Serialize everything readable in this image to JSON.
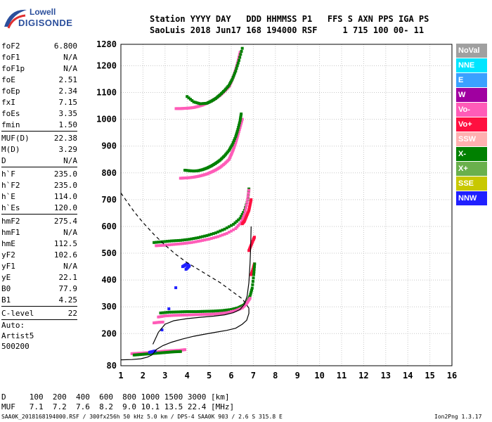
{
  "logo": {
    "brand": "Lowell",
    "product": "DIGISONDE"
  },
  "header": {
    "line1": "Station YYYY DAY   DDD HHMMSS P1   FFS S AXN PPS IGA PS",
    "line2": "SaoLuis 2018 Jun17 168 194000 RSF     1 715 100 00- 11"
  },
  "params": [
    {
      "type": "row",
      "label": "foF2",
      "value": "6.800"
    },
    {
      "type": "row",
      "label": "foF1",
      "value": "N/A"
    },
    {
      "type": "row",
      "label": "foF1p",
      "value": "N/A"
    },
    {
      "type": "row",
      "label": "foE",
      "value": "2.51"
    },
    {
      "type": "row",
      "label": "foEp",
      "value": "2.34"
    },
    {
      "type": "row",
      "label": "fxI",
      "value": "7.15"
    },
    {
      "type": "row",
      "label": "foEs",
      "value": "3.35"
    },
    {
      "type": "row",
      "label": "fmin",
      "value": "1.50"
    },
    {
      "type": "sep"
    },
    {
      "type": "row",
      "label": "MUF(D)",
      "value": "22.38"
    },
    {
      "type": "row",
      "label": "M(D)",
      "value": "3.29"
    },
    {
      "type": "row",
      "label": "D",
      "value": "N/A"
    },
    {
      "type": "sep"
    },
    {
      "type": "row",
      "label": "h`F",
      "value": "235.0"
    },
    {
      "type": "row",
      "label": "h`F2",
      "value": "235.0"
    },
    {
      "type": "row",
      "label": "h`E",
      "value": "114.0"
    },
    {
      "type": "row",
      "label": "h`Es",
      "value": "120.0"
    },
    {
      "type": "sep"
    },
    {
      "type": "row",
      "label": "hmF2",
      "value": "275.4"
    },
    {
      "type": "row",
      "label": "hmF1",
      "value": "N/A"
    },
    {
      "type": "row",
      "label": "hmE",
      "value": "112.5"
    },
    {
      "type": "row",
      "label": "yF2",
      "value": "102.6"
    },
    {
      "type": "row",
      "label": "yF1",
      "value": "N/A"
    },
    {
      "type": "row",
      "label": "yE",
      "value": "22.1"
    },
    {
      "type": "row",
      "label": "B0",
      "value": "77.9"
    },
    {
      "type": "row",
      "label": "B1",
      "value": "4.25"
    },
    {
      "type": "sep"
    },
    {
      "type": "row",
      "label": "C-level",
      "value": "22"
    },
    {
      "type": "sep"
    },
    {
      "type": "text",
      "value": "Auto:"
    },
    {
      "type": "text",
      "value": "Artist5"
    },
    {
      "type": "text",
      "value": "500200"
    }
  ],
  "legend": [
    {
      "label": "NoVal",
      "color": "#a0a0a0"
    },
    {
      "label": "NNE",
      "color": "#00e5ff"
    },
    {
      "label": "E",
      "color": "#3aa0ff"
    },
    {
      "label": "W",
      "color": "#a000a0"
    },
    {
      "label": "Vo-",
      "color": "#ff5cb8"
    },
    {
      "label": "Vo+",
      "color": "#ff1040"
    },
    {
      "label": "SSW",
      "color": "#ffb0b0"
    },
    {
      "label": "X-",
      "color": "#008000"
    },
    {
      "label": "X+",
      "color": "#6ab04c"
    },
    {
      "label": "SSE",
      "color": "#c8c800"
    },
    {
      "label": "NNW",
      "color": "#2020ff"
    }
  ],
  "bottom": {
    "d_line": "D     100  200  400  600  800 1000 1500 3000 [km]",
    "muf_line": "MUF   7.1  7.2  7.6  8.2  9.0 10.1 13.5 22.4 [MHz]"
  },
  "footer": {
    "text": "SAA0K_2018168194000.RSF / 300fx256h 50 kHz 5.0 km / DPS-4 SAA0K 903 / 2.6 S 315.8 E",
    "version": "Ion2Png 1.3.17"
  },
  "chart_data": {
    "type": "scatter",
    "xlim": [
      1,
      16
    ],
    "ylim": [
      80,
      1280
    ],
    "x_ticks": [
      1,
      2,
      3,
      4,
      5,
      6,
      7,
      8,
      9,
      10,
      11,
      12,
      13,
      14,
      15,
      16
    ],
    "y_ticks": [
      80,
      200,
      300,
      400,
      500,
      600,
      700,
      800,
      900,
      1000,
      1100,
      1200,
      1280
    ],
    "grid": true,
    "legend_position": "right",
    "traces": [
      {
        "color": "#ff5cb8",
        "points": [
          [
            3.5,
            1040
          ],
          [
            3.7,
            1040
          ],
          [
            3.9,
            1041
          ],
          [
            4.1,
            1042
          ],
          [
            4.3,
            1044
          ],
          [
            4.5,
            1048
          ],
          [
            4.7,
            1053
          ],
          [
            4.9,
            1060
          ],
          [
            5.1,
            1068
          ],
          [
            5.3,
            1078
          ],
          [
            5.5,
            1090
          ],
          [
            5.7,
            1105
          ],
          [
            5.9,
            1122
          ],
          [
            6.0,
            1140
          ],
          [
            6.1,
            1160
          ],
          [
            6.2,
            1185
          ],
          [
            6.3,
            1215
          ],
          [
            6.4,
            1250
          ]
        ]
      },
      {
        "color": "#008000",
        "points": [
          [
            4.0,
            1085
          ],
          [
            4.3,
            1065
          ],
          [
            4.6,
            1058
          ],
          [
            4.9,
            1060
          ],
          [
            5.1,
            1068
          ],
          [
            5.3,
            1078
          ],
          [
            5.5,
            1092
          ],
          [
            5.7,
            1108
          ],
          [
            5.9,
            1127
          ],
          [
            6.05,
            1150
          ],
          [
            6.2,
            1180
          ],
          [
            6.35,
            1220
          ],
          [
            6.5,
            1265
          ]
        ]
      },
      {
        "color": "#ff5cb8",
        "points": [
          [
            3.7,
            780
          ],
          [
            3.9,
            781
          ],
          [
            4.1,
            782
          ],
          [
            4.3,
            784
          ],
          [
            4.5,
            787
          ],
          [
            4.7,
            791
          ],
          [
            4.9,
            796
          ],
          [
            5.1,
            803
          ],
          [
            5.3,
            811
          ],
          [
            5.5,
            821
          ],
          [
            5.7,
            834
          ],
          [
            5.9,
            850
          ],
          [
            6.0,
            868
          ],
          [
            6.1,
            888
          ],
          [
            6.2,
            912
          ],
          [
            6.3,
            940
          ],
          [
            6.4,
            970
          ],
          [
            6.5,
            1000
          ]
        ]
      },
      {
        "color": "#008000",
        "points": [
          [
            3.9,
            810
          ],
          [
            4.1,
            808
          ],
          [
            4.3,
            807
          ],
          [
            4.5,
            808
          ],
          [
            4.7,
            812
          ],
          [
            4.9,
            818
          ],
          [
            5.1,
            826
          ],
          [
            5.3,
            836
          ],
          [
            5.5,
            848
          ],
          [
            5.7,
            864
          ],
          [
            5.9,
            884
          ],
          [
            6.05,
            906
          ],
          [
            6.2,
            935
          ],
          [
            6.3,
            962
          ],
          [
            6.4,
            995
          ],
          [
            6.45,
            1020
          ]
        ]
      },
      {
        "color": "#008000",
        "points": [
          [
            2.5,
            540
          ],
          [
            2.9,
            543
          ],
          [
            3.3,
            546
          ],
          [
            3.7,
            548
          ],
          [
            4.1,
            552
          ],
          [
            4.5,
            558
          ],
          [
            4.9,
            566
          ],
          [
            5.3,
            576
          ],
          [
            5.7,
            590
          ],
          [
            6.1,
            608
          ],
          [
            6.4,
            630
          ],
          [
            6.6,
            660
          ],
          [
            6.75,
            700
          ],
          [
            6.8,
            740
          ]
        ]
      },
      {
        "color": "#ff5cb8",
        "points": [
          [
            2.6,
            528
          ],
          [
            3.0,
            530
          ],
          [
            3.4,
            533
          ],
          [
            3.8,
            536
          ],
          [
            4.2,
            540
          ],
          [
            4.6,
            546
          ],
          [
            5.0,
            553
          ],
          [
            5.4,
            562
          ],
          [
            5.8,
            574
          ],
          [
            6.2,
            592
          ],
          [
            6.45,
            615
          ],
          [
            6.6,
            645
          ],
          [
            6.72,
            690
          ],
          [
            6.8,
            735
          ]
        ]
      },
      {
        "color": "#ff1040",
        "points": [
          [
            6.5,
            610
          ],
          [
            6.6,
            620
          ],
          [
            6.7,
            640
          ],
          [
            6.8,
            660
          ],
          [
            6.85,
            680
          ],
          [
            6.9,
            700
          ]
        ]
      },
      {
        "color": "#ff1040",
        "points": [
          [
            6.8,
            510
          ],
          [
            6.9,
            530
          ],
          [
            7.0,
            550
          ],
          [
            7.05,
            560
          ]
        ]
      },
      {
        "color": "#ff1040",
        "points": [
          [
            6.9,
            420
          ],
          [
            7.0,
            445
          ],
          [
            7.05,
            460
          ]
        ]
      },
      {
        "color": "#008000",
        "points": [
          [
            2.8,
            277
          ],
          [
            3.2,
            280
          ],
          [
            3.6,
            281
          ],
          [
            4.0,
            282
          ],
          [
            4.4,
            282
          ],
          [
            4.8,
            283
          ],
          [
            5.2,
            284
          ],
          [
            5.6,
            286
          ],
          [
            6.0,
            290
          ],
          [
            6.3,
            296
          ],
          [
            6.55,
            306
          ],
          [
            6.75,
            322
          ],
          [
            6.85,
            340
          ],
          [
            6.95,
            370
          ],
          [
            7.02,
            420
          ],
          [
            7.06,
            460
          ]
        ]
      },
      {
        "color": "#ff5cb8",
        "points": [
          [
            2.7,
            262
          ],
          [
            3.0,
            266
          ],
          [
            3.4,
            268
          ],
          [
            3.8,
            269
          ],
          [
            4.2,
            270
          ],
          [
            4.6,
            271
          ],
          [
            5.0,
            272
          ],
          [
            5.4,
            274
          ],
          [
            5.8,
            278
          ],
          [
            6.2,
            286
          ],
          [
            6.5,
            296
          ],
          [
            6.7,
            312
          ],
          [
            6.85,
            332
          ]
        ]
      },
      {
        "color": "#ff5cb8",
        "points": [
          [
            2.5,
            240
          ],
          [
            2.7,
            242
          ],
          [
            2.9,
            243
          ]
        ]
      },
      {
        "color": "#ff5cb8",
        "points": [
          [
            1.5,
            125
          ],
          [
            1.7,
            126
          ],
          [
            1.9,
            127
          ],
          [
            2.1,
            128
          ],
          [
            2.3,
            129
          ],
          [
            2.5,
            130
          ],
          [
            2.7,
            132
          ],
          [
            2.9,
            134
          ],
          [
            3.1,
            135
          ],
          [
            3.3,
            136
          ],
          [
            3.5,
            137
          ],
          [
            3.7,
            138
          ],
          [
            3.9,
            140
          ]
        ]
      },
      {
        "color": "#008000",
        "points": [
          [
            1.6,
            120
          ],
          [
            1.9,
            122
          ],
          [
            2.2,
            124
          ],
          [
            2.5,
            126
          ],
          [
            2.8,
            128
          ],
          [
            3.1,
            130
          ],
          [
            3.4,
            132
          ],
          [
            3.7,
            133
          ]
        ]
      },
      {
        "color": "#2020ff",
        "points": [
          [
            2.3,
            130
          ],
          [
            2.4,
            132
          ],
          [
            2.55,
            135
          ],
          [
            3.8,
            450
          ],
          [
            3.9,
            455
          ],
          [
            4.0,
            460
          ],
          [
            4.1,
            452
          ],
          [
            3.95,
            440
          ]
        ]
      }
    ],
    "profile_solid": {
      "color": "#000000",
      "points": [
        [
          1.0,
          102
        ],
        [
          1.5,
          103
        ],
        [
          1.9,
          106
        ],
        [
          2.2,
          112
        ],
        [
          2.4,
          120
        ],
        [
          2.51,
          130
        ],
        [
          2.6,
          140
        ],
        [
          2.9,
          155
        ],
        [
          3.3,
          168
        ],
        [
          3.8,
          180
        ],
        [
          4.3,
          190
        ],
        [
          4.8,
          198
        ],
        [
          5.3,
          205
        ],
        [
          5.8,
          212
        ],
        [
          6.2,
          220
        ],
        [
          6.5,
          235
        ],
        [
          6.7,
          250
        ],
        [
          6.8,
          275
        ],
        [
          6.8,
          295
        ]
      ]
    },
    "profile_trace": {
      "color": "#000000",
      "points": [
        [
          2.45,
          160
        ],
        [
          2.7,
          205
        ],
        [
          3.0,
          235
        ],
        [
          3.4,
          248
        ],
        [
          4.0,
          256
        ],
        [
          4.6,
          261
        ],
        [
          5.2,
          265
        ],
        [
          5.7,
          270
        ],
        [
          6.1,
          278
        ],
        [
          6.4,
          290
        ],
        [
          6.6,
          310
        ],
        [
          6.72,
          340
        ],
        [
          6.8,
          390
        ],
        [
          6.85,
          460
        ],
        [
          6.88,
          520
        ],
        [
          6.9,
          600
        ]
      ]
    },
    "muf_curve": {
      "color": "#000000",
      "dash": true,
      "points": [
        [
          1.0,
          725
        ],
        [
          1.3,
          690
        ],
        [
          1.6,
          655
        ],
        [
          2.0,
          615
        ],
        [
          2.5,
          570
        ],
        [
          3.0,
          530
        ],
        [
          3.5,
          495
        ],
        [
          4.0,
          465
        ],
        [
          4.5,
          440
        ],
        [
          5.0,
          415
        ],
        [
          5.5,
          390
        ],
        [
          6.0,
          360
        ],
        [
          6.5,
          330
        ],
        [
          6.8,
          295
        ]
      ]
    }
  }
}
